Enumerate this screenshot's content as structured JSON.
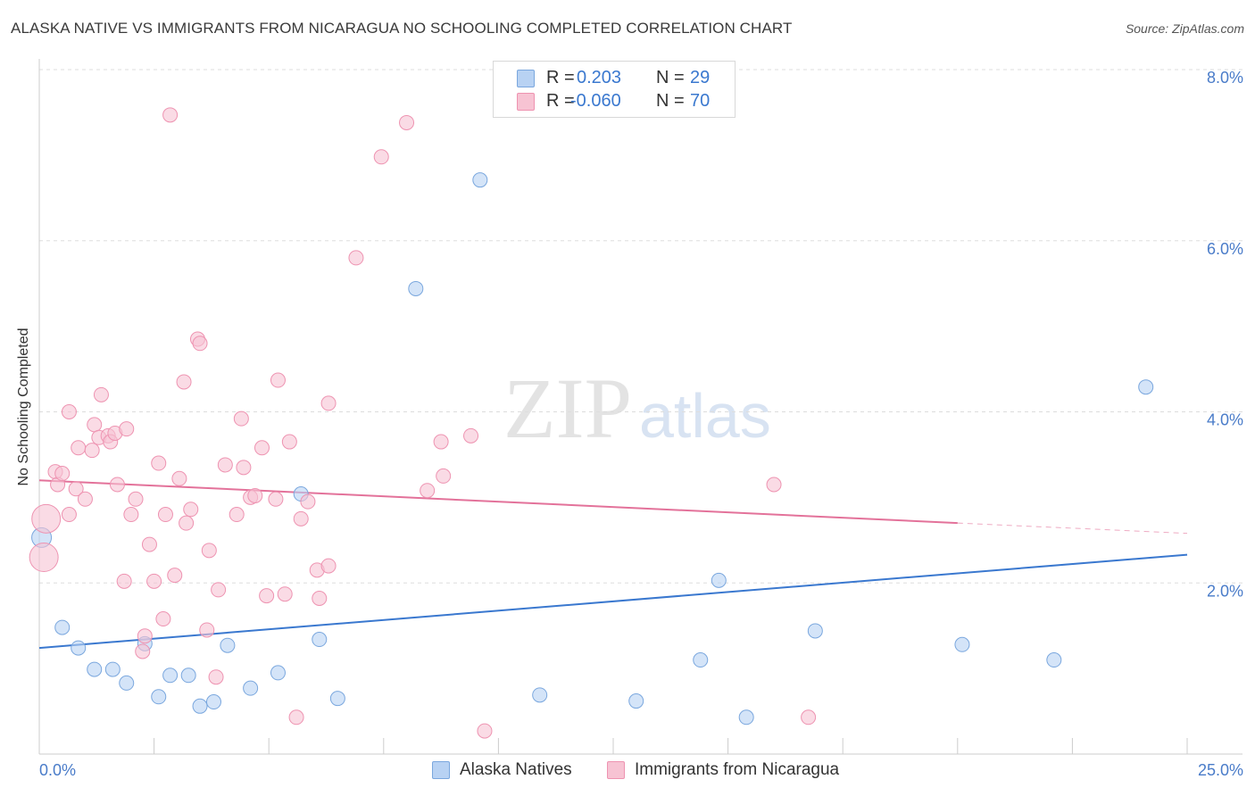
{
  "title": "ALASKA NATIVE VS IMMIGRANTS FROM NICARAGUA NO SCHOOLING COMPLETED CORRELATION CHART",
  "source": "Source: ZipAtlas.com",
  "watermark": {
    "zip": "ZIP",
    "atlas": "atlas"
  },
  "legend": {
    "r_label": "R =",
    "n_label": "N =",
    "rows": [
      {
        "r": "0.203",
        "n": "29"
      },
      {
        "r": "-0.060",
        "n": "70"
      }
    ]
  },
  "colors": {
    "alaska_fill": "#b8d2f3",
    "alaska_stroke": "#7aa7de",
    "alaska_line": "#3a78cf",
    "nicaragua_fill": "#f7c3d3",
    "nicaragua_stroke": "#ee93b1",
    "nicaragua_line": "#e3729a",
    "tick_label": "#4a7cc9",
    "grid": "#dddddd"
  },
  "chart_data": {
    "type": "scatter",
    "xlabel": "",
    "ylabel": "No Schooling Completed",
    "xlim": [
      0,
      25
    ],
    "ylim": [
      0,
      8
    ],
    "x_tick_labels": [
      "0.0%",
      "25.0%"
    ],
    "y_ticks": [
      2,
      4,
      6,
      8
    ],
    "y_tick_labels": [
      "2.0%",
      "4.0%",
      "6.0%",
      "8.0%"
    ],
    "grid": true,
    "legend_position": "top-center",
    "series": [
      {
        "name": "Alaska Natives",
        "r": 0.203,
        "n": 29,
        "trend": {
          "x": [
            0,
            25
          ],
          "y": [
            1.24,
            2.33
          ]
        },
        "points": [
          [
            0.05,
            2.53
          ],
          [
            0.5,
            1.48
          ],
          [
            0.85,
            1.24
          ],
          [
            1.2,
            0.99
          ],
          [
            1.6,
            0.99
          ],
          [
            1.9,
            0.83
          ],
          [
            2.3,
            1.29
          ],
          [
            2.6,
            0.67
          ],
          [
            2.85,
            0.92
          ],
          [
            3.25,
            0.92
          ],
          [
            3.5,
            0.56
          ],
          [
            3.8,
            0.61
          ],
          [
            4.1,
            1.27
          ],
          [
            4.6,
            0.77
          ],
          [
            5.2,
            0.95
          ],
          [
            5.7,
            3.04
          ],
          [
            6.1,
            1.34
          ],
          [
            6.5,
            0.65
          ],
          [
            8.2,
            5.44
          ],
          [
            9.6,
            6.71
          ],
          [
            10.9,
            0.69
          ],
          [
            13.0,
            0.62
          ],
          [
            14.4,
            1.1
          ],
          [
            14.8,
            2.03
          ],
          [
            15.4,
            0.43
          ],
          [
            16.9,
            1.44
          ],
          [
            20.1,
            1.28
          ],
          [
            22.1,
            1.1
          ],
          [
            24.1,
            4.29
          ]
        ]
      },
      {
        "name": "Immigrants from Nicaragua",
        "r": -0.06,
        "n": 70,
        "trend": {
          "x": [
            0,
            20
          ],
          "y": [
            3.2,
            2.7
          ]
        },
        "trend_dashed": {
          "x": [
            20,
            25
          ],
          "y": [
            2.7,
            2.58
          ]
        },
        "points": [
          [
            0.1,
            2.3
          ],
          [
            0.15,
            2.75
          ],
          [
            0.35,
            3.3
          ],
          [
            0.4,
            3.15
          ],
          [
            0.5,
            3.28
          ],
          [
            0.65,
            2.8
          ],
          [
            0.65,
            4.0
          ],
          [
            0.8,
            3.1
          ],
          [
            0.85,
            3.58
          ],
          [
            1.0,
            2.98
          ],
          [
            1.15,
            3.55
          ],
          [
            1.2,
            3.85
          ],
          [
            1.3,
            3.7
          ],
          [
            1.35,
            4.2
          ],
          [
            1.5,
            3.72
          ],
          [
            1.55,
            3.65
          ],
          [
            1.65,
            3.75
          ],
          [
            1.7,
            3.15
          ],
          [
            1.85,
            2.02
          ],
          [
            1.9,
            3.8
          ],
          [
            2.0,
            2.8
          ],
          [
            2.1,
            2.98
          ],
          [
            2.25,
            1.2
          ],
          [
            2.3,
            1.38
          ],
          [
            2.4,
            2.45
          ],
          [
            2.5,
            2.02
          ],
          [
            2.6,
            3.4
          ],
          [
            2.7,
            1.58
          ],
          [
            2.75,
            2.8
          ],
          [
            2.85,
            7.47
          ],
          [
            2.95,
            2.09
          ],
          [
            3.05,
            3.22
          ],
          [
            3.15,
            4.35
          ],
          [
            3.2,
            2.7
          ],
          [
            3.3,
            2.86
          ],
          [
            3.45,
            4.85
          ],
          [
            3.5,
            4.8
          ],
          [
            3.65,
            1.45
          ],
          [
            3.7,
            2.38
          ],
          [
            3.85,
            0.9
          ],
          [
            3.9,
            1.92
          ],
          [
            4.05,
            3.38
          ],
          [
            4.3,
            2.8
          ],
          [
            4.4,
            3.92
          ],
          [
            4.45,
            3.35
          ],
          [
            4.6,
            3.0
          ],
          [
            4.7,
            3.02
          ],
          [
            4.85,
            3.58
          ],
          [
            4.95,
            1.85
          ],
          [
            5.15,
            2.98
          ],
          [
            5.2,
            4.37
          ],
          [
            5.35,
            1.87
          ],
          [
            5.45,
            3.65
          ],
          [
            5.6,
            0.43
          ],
          [
            5.7,
            2.75
          ],
          [
            5.85,
            2.95
          ],
          [
            6.05,
            2.15
          ],
          [
            6.1,
            1.82
          ],
          [
            6.3,
            4.1
          ],
          [
            6.3,
            2.2
          ],
          [
            6.9,
            5.8
          ],
          [
            7.45,
            6.98
          ],
          [
            8.0,
            7.38
          ],
          [
            8.45,
            3.08
          ],
          [
            8.75,
            3.65
          ],
          [
            8.8,
            3.25
          ],
          [
            9.4,
            3.72
          ],
          [
            9.7,
            0.27
          ],
          [
            16.0,
            3.15
          ],
          [
            16.75,
            0.43
          ]
        ]
      }
    ]
  }
}
